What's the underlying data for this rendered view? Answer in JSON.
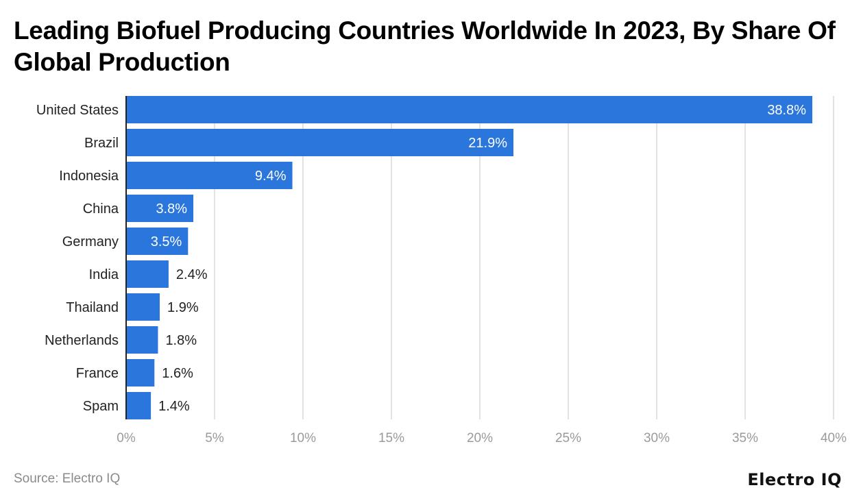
{
  "chart_data": {
    "type": "bar",
    "orientation": "horizontal",
    "title": "Leading Biofuel Producing Countries Worldwide In 2023, By Share Of Global Production",
    "categories": [
      "United States",
      "Brazil",
      "Indonesia",
      "China",
      "Germany",
      "India",
      "Thailand",
      "Netherlands",
      "France",
      "Spam"
    ],
    "values": [
      38.8,
      21.9,
      9.4,
      3.8,
      3.5,
      2.4,
      1.9,
      1.8,
      1.6,
      1.4
    ],
    "data_labels": [
      "38.8%",
      "21.9%",
      "9.4%",
      "3.8%",
      "3.5%",
      "2.4%",
      "1.9%",
      "1.8%",
      "1.6%",
      "1.4%"
    ],
    "xlim": [
      0,
      40
    ],
    "xticks": [
      0,
      5,
      10,
      15,
      20,
      25,
      30,
      35,
      40
    ],
    "xtick_labels": [
      "0%",
      "5%",
      "10%",
      "15%",
      "20%",
      "25%",
      "30%",
      "35%",
      "40%"
    ],
    "xlabel": "",
    "ylabel": "",
    "grid": true,
    "bar_color": "#2a76dd"
  },
  "footer": {
    "source": "Source: Electro IQ",
    "logo": "Electro IQ"
  }
}
